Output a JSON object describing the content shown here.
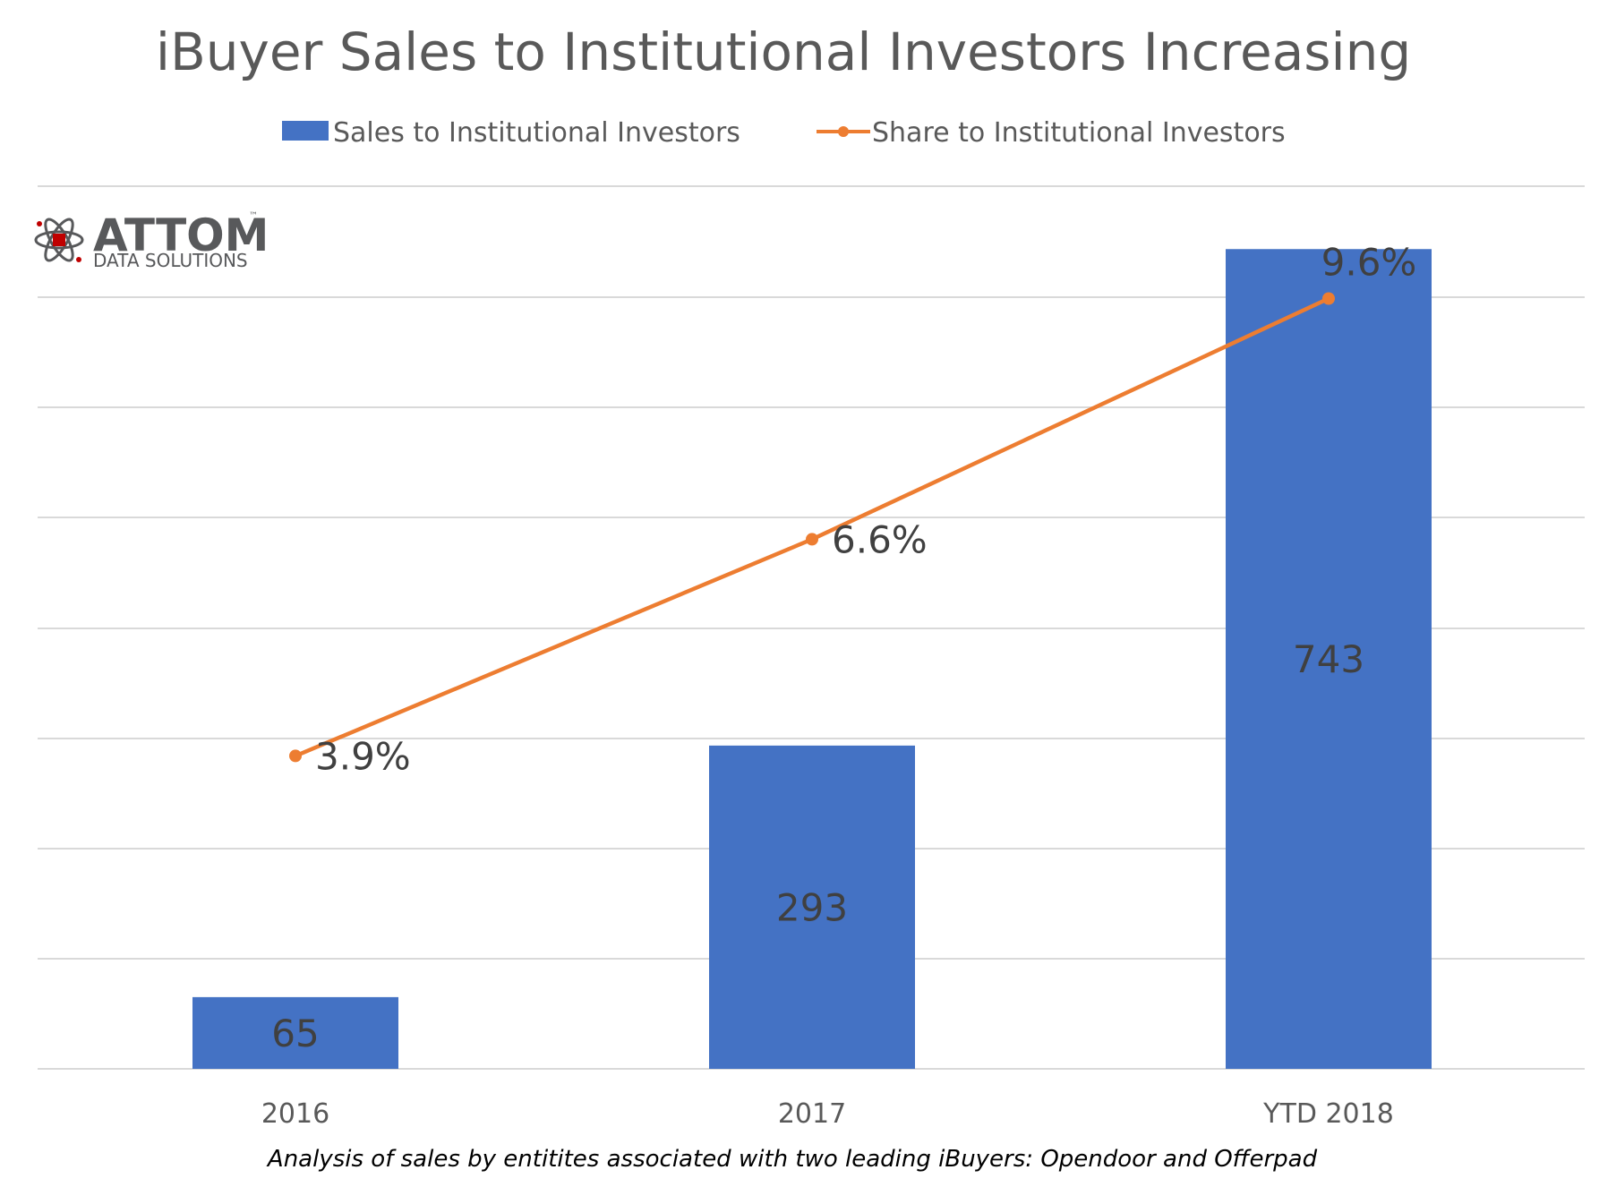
{
  "chart_data": {
    "type": "bar",
    "title": "iBuyer Sales to Institutional Investors Increasing",
    "categories": [
      "2016",
      "2017",
      "YTD 2018"
    ],
    "series": [
      {
        "name": "Sales to Institutional Investors",
        "type": "bar",
        "values": [
          65,
          293,
          743
        ],
        "labels": [
          "65",
          "293",
          "743"
        ],
        "color": "#4472c4"
      },
      {
        "name": "Share to Institutional Investors",
        "type": "line",
        "values": [
          3.9,
          6.6,
          9.6
        ],
        "labels": [
          "3.9%",
          "6.6%",
          "9.6%"
        ],
        "color": "#ed7d31"
      }
    ],
    "legend": "top",
    "grid": true,
    "xlabel": "",
    "ylabel": "",
    "ylim": [
      0,
      800
    ],
    "y2lim": [
      0,
      11
    ],
    "caption": "Analysis of sales by entitites associated with two leading iBuyers: Opendoor and Offerpad"
  },
  "logo": {
    "name": "ATTOM",
    "tm": "™",
    "subtitle": "DATA SOLUTIONS"
  },
  "colors": {
    "bar": "#4472c4",
    "line": "#ed7d31",
    "grid": "#d9d9d9",
    "text": "#595959"
  }
}
